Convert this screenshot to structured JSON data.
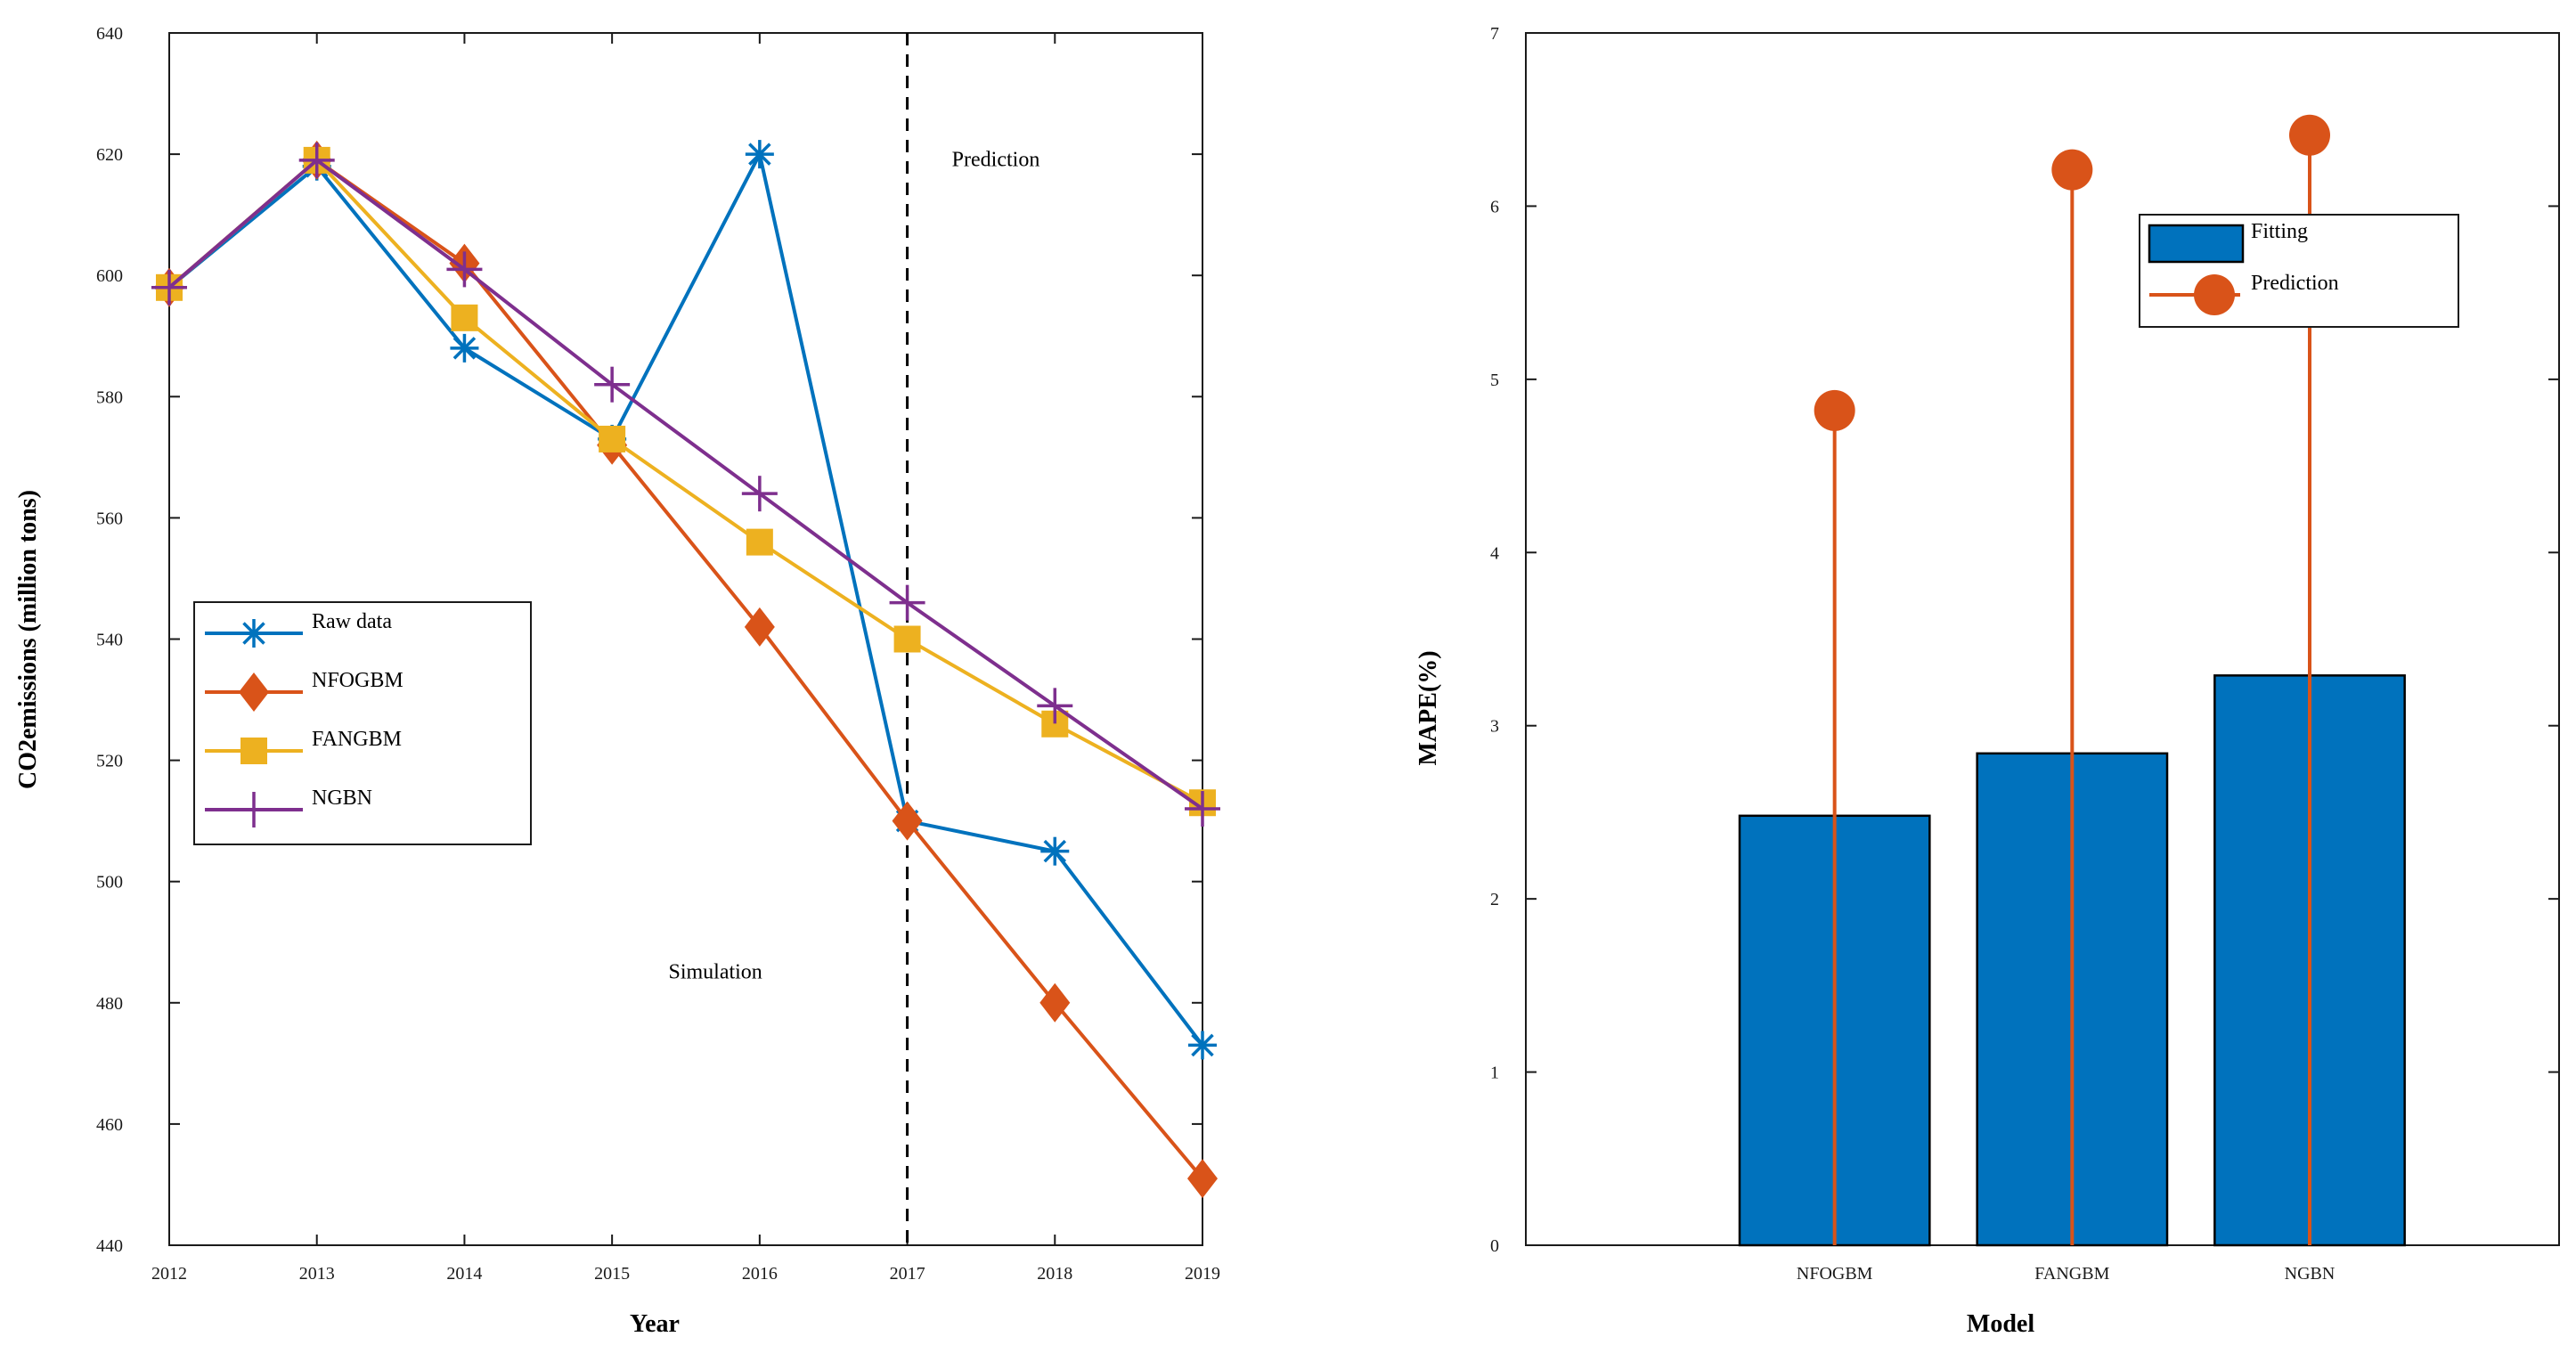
{
  "chart_data": [
    {
      "type": "line",
      "x": [
        2012,
        2013,
        2014,
        2015,
        2016,
        2017,
        2018,
        2019
      ],
      "xlim": [
        2012,
        2019
      ],
      "ylim": [
        440,
        640
      ],
      "xticks": [
        "2012",
        "2013",
        "2014",
        "2015",
        "2016",
        "2017",
        "2018",
        "2019"
      ],
      "yticks": [
        "440",
        "460",
        "480",
        "500",
        "520",
        "540",
        "560",
        "580",
        "600",
        "620",
        "640"
      ],
      "xlabel": "Year",
      "ylabel": "CO2emissions (million tons)",
      "divider_x": 2017,
      "annotations": [
        {
          "text": "Prediction",
          "x": 2017.6,
          "y": 618
        },
        {
          "text": "Simulation",
          "x": 2015.7,
          "y": 484
        }
      ],
      "series": [
        {
          "name": "Raw data",
          "color": "#0072bd",
          "marker": "asterisk",
          "values": [
            598,
            618,
            588,
            573,
            620,
            510,
            505,
            473
          ]
        },
        {
          "name": "NFOGBM",
          "color": "#d95319",
          "marker": "diamond",
          "values": [
            598,
            619,
            602,
            572,
            542,
            510,
            480,
            451
          ]
        },
        {
          "name": "FANGBM",
          "color": "#edb120",
          "marker": "square",
          "values": [
            598,
            619,
            593,
            573,
            556,
            540,
            526,
            513
          ]
        },
        {
          "name": "NGBN",
          "color": "#7e2f8e",
          "marker": "plus",
          "values": [
            598,
            619,
            601,
            582,
            564,
            546,
            529,
            512
          ]
        }
      ]
    },
    {
      "type": "bar",
      "categories": [
        "NFOGBM",
        "FANGBM",
        "NGBN"
      ],
      "ylim": [
        0,
        7
      ],
      "yticks": [
        "0",
        "1",
        "2",
        "3",
        "4",
        "5",
        "6",
        "7"
      ],
      "xlabel": "Model",
      "ylabel": "MAPE(%)",
      "series": [
        {
          "name": "Fitting",
          "type": "bar",
          "color": "#0072bd",
          "values": [
            2.48,
            2.84,
            3.29
          ]
        },
        {
          "name": "Prediction",
          "type": "stem",
          "color": "#d95319",
          "values": [
            4.82,
            6.21,
            6.41
          ]
        }
      ]
    }
  ]
}
